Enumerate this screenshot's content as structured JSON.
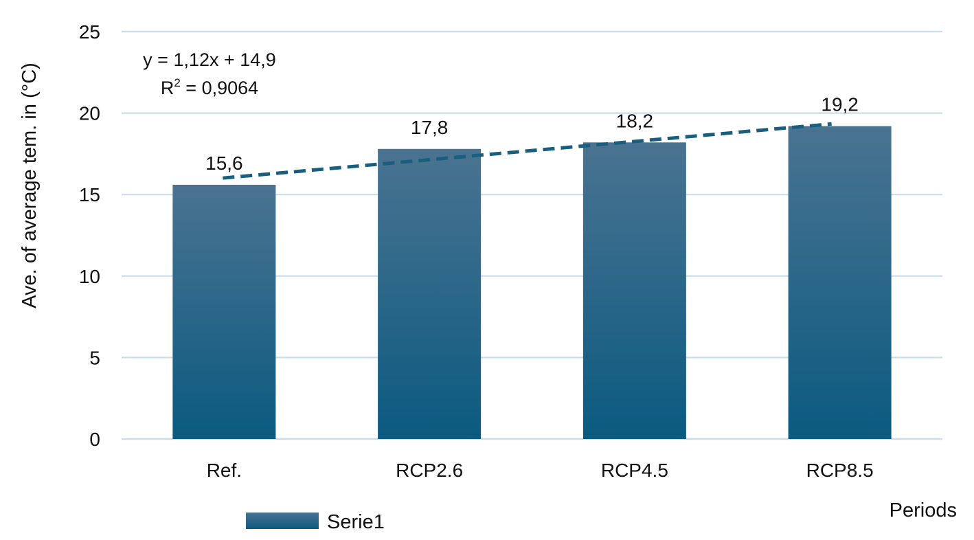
{
  "chart_data": {
    "type": "bar",
    "categories": [
      "Ref.",
      "RCP2.6",
      "RCP4.5",
      "RCP8.5"
    ],
    "series": [
      {
        "name": "Serie1",
        "values": [
          15.6,
          17.8,
          18.2,
          19.2
        ]
      }
    ],
    "data_labels": [
      "15,6",
      "17,8",
      "18,2",
      "19,2"
    ],
    "xlabel": "Periods",
    "ylabel": "Ave. of average tem. in (°C)",
    "ylim": [
      0,
      25
    ],
    "yticks": [
      0,
      5,
      10,
      15,
      20,
      25
    ],
    "grid": true,
    "legend": {
      "position": "bottom-left",
      "entries": [
        "Serie1"
      ]
    },
    "trendline": {
      "type": "linear",
      "style": "dashed",
      "slope": 1.12,
      "intercept": 14.9,
      "equation": "y = 1,12x + 14,9",
      "r2_prefix": "R",
      "r2_sup": "2",
      "r2_value": " = 0,9064"
    },
    "colors": {
      "bar_top": "#4a7391",
      "bar_bottom": "#0b5a80",
      "trendline": "#1a5e7e",
      "grid": "#c9ddec"
    }
  }
}
